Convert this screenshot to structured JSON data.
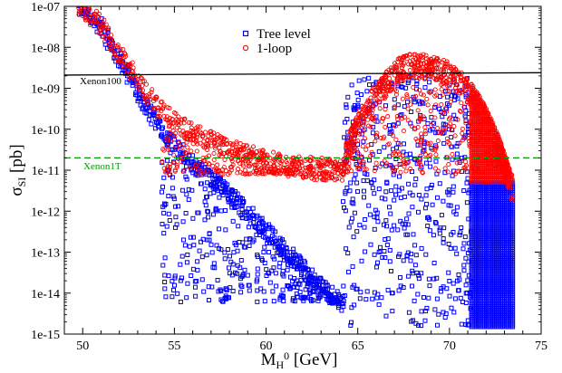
{
  "chart_data": {
    "type": "scatter",
    "title": "",
    "xlabel_main": "M",
    "xlabel_sub": "H",
    "xlabel_sup": "0",
    "xlabel_unit": " [GeV]",
    "ylabel_main": "σ",
    "ylabel_sub": "SI",
    "ylabel_unit": " [pb]",
    "xlim": [
      49,
      75
    ],
    "ylim": [
      1e-15,
      1e-07
    ],
    "yscale": "log",
    "x_ticks": [
      "50",
      "55",
      "60",
      "65",
      "70",
      "75"
    ],
    "x_tick_values": [
      50,
      55,
      60,
      65,
      70,
      75
    ],
    "y_ticks": [
      "1e-15",
      "1e-14",
      "1e-13",
      "1e-12",
      "1e-11",
      "1e-10",
      "1e-09",
      "1e-08",
      "1e-07"
    ],
    "y_tick_values": [
      1e-15,
      1e-14,
      1e-13,
      1e-12,
      1e-11,
      1e-10,
      1e-09,
      1e-08,
      1e-07
    ],
    "legend_position": "top-center",
    "series": [
      {
        "name": "Tree level",
        "marker": "square",
        "color": "#0000ff"
      },
      {
        "name": "1-loop",
        "marker": "circle",
        "color": "#ff0000"
      }
    ],
    "lines": [
      {
        "label": "Xenon100",
        "color": "#000000",
        "style": "solid",
        "x": [
          49,
          75
        ],
        "y": [
          2.1e-09,
          2.4e-09
        ]
      },
      {
        "label": "Xenon1T",
        "color": "#009900",
        "style": "dashed",
        "x": [
          49,
          75
        ],
        "y": [
          2e-11,
          2e-11
        ]
      }
    ],
    "regions": {
      "tree_upper_band": {
        "x": [
          50,
          51,
          52,
          53,
          54,
          55,
          56,
          57,
          58,
          59,
          60,
          61,
          62,
          63,
          64
        ],
        "y": [
          9e-08,
          3e-08,
          5e-09,
          8e-10,
          1.5e-10,
          4e-11,
          1.5e-11,
          6e-12,
          2.5e-12,
          1e-12,
          3.5e-13,
          1.2e-13,
          4e-14,
          1.5e-14,
          6e-15
        ]
      },
      "loop_upper_band": {
        "x": [
          50,
          51,
          52,
          53,
          54,
          55,
          56,
          57,
          58,
          59,
          60,
          61,
          62,
          63,
          64
        ],
        "y": [
          9e-08,
          3.5e-08,
          7e-09,
          1.5e-09,
          4e-10,
          1.5e-10,
          8e-11,
          5e-11,
          3e-11,
          2.2e-11,
          1.6e-11,
          1.3e-11,
          1.1e-11,
          1e-11,
          1e-11
        ]
      },
      "tree_scatter_left": {
        "x": [
          54.3,
          64.2
        ],
        "y_min": 6e-15,
        "y_max": 3e-11
      },
      "loop_flat_band": {
        "x": [
          54.3,
          64.2
        ],
        "y_min": 8e-12,
        "y_max": 9e-11
      },
      "tree_scatter_right": {
        "x": [
          64.2,
          71.2
        ],
        "y_min": 1.5e-15,
        "y_max": 2e-09
      },
      "loop_dome": {
        "x": [
          64.2,
          73.5
        ],
        "peak_x": 67.5,
        "peak_y": 7e-09,
        "y_min": 8e-12
      },
      "tree_dense_column": {
        "x": [
          71.2,
          73.5
        ],
        "y_min": 1.5e-15,
        "y_max": 5e-12
      },
      "loop_dense_column": {
        "x": [
          71.2,
          73.5
        ],
        "y_min": 5e-12,
        "y_max": 2e-09
      }
    }
  }
}
